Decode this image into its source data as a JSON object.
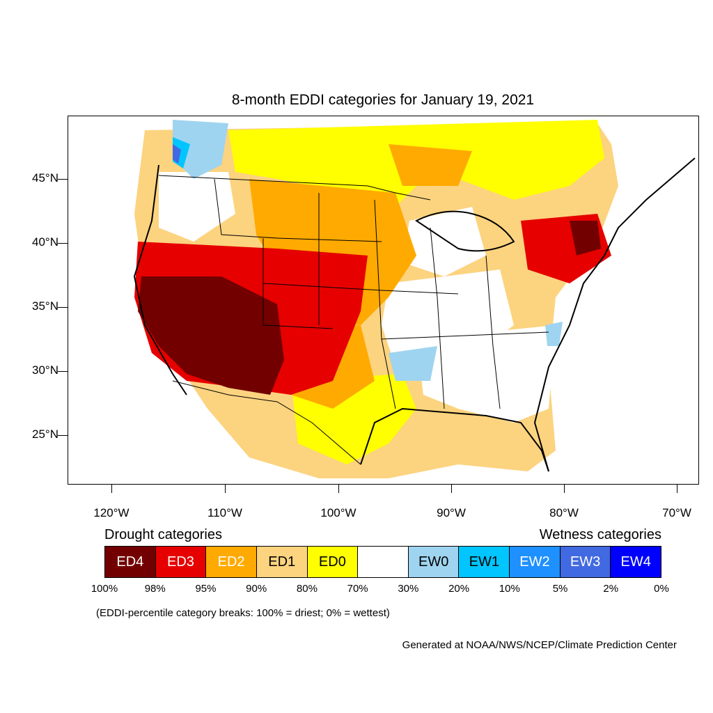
{
  "title": "8-month EDDI categories for January 19, 2021",
  "lat_labels": [
    "45°N",
    "40°N",
    "35°N",
    "30°N",
    "25°N"
  ],
  "lon_labels": [
    "120°W",
    "110°W",
    "100°W",
    "90°W",
    "80°W",
    "70°W"
  ],
  "legend": {
    "drought_heading": "Drought categories",
    "wetness_heading": "Wetness categories",
    "categories": [
      {
        "label": "ED4",
        "color": "#730000",
        "text_color": "#ffffff"
      },
      {
        "label": "ED3",
        "color": "#e60000",
        "text_color": "#ffffff"
      },
      {
        "label": "ED2",
        "color": "#ffaa00",
        "text_color": "#ffffff"
      },
      {
        "label": "ED1",
        "color": "#fcd37f",
        "text_color": "#000000"
      },
      {
        "label": "ED0",
        "color": "#ffff00",
        "text_color": "#000000"
      },
      {
        "label": "",
        "color": "#ffffff",
        "text_color": "#000000"
      },
      {
        "label": "EW0",
        "color": "#9fd4f0",
        "text_color": "#000000"
      },
      {
        "label": "EW1",
        "color": "#00c5ff",
        "text_color": "#000000"
      },
      {
        "label": "EW2",
        "color": "#1e90ff",
        "text_color": "#ffffff"
      },
      {
        "label": "EW3",
        "color": "#4169e1",
        "text_color": "#ffffff"
      },
      {
        "label": "EW4",
        "color": "#0000ff",
        "text_color": "#ffffff"
      }
    ],
    "breaks": [
      "100%",
      "98%",
      "95%",
      "90%",
      "80%",
      "70%",
      "30%",
      "20%",
      "10%",
      "5%",
      "2%",
      "0%"
    ]
  },
  "note": "(EDDI-percentile category breaks: 100% = driest; 0% = wettest)",
  "credit": "Generated at NOAA/NWS/NCEP/Climate Prediction Center"
}
